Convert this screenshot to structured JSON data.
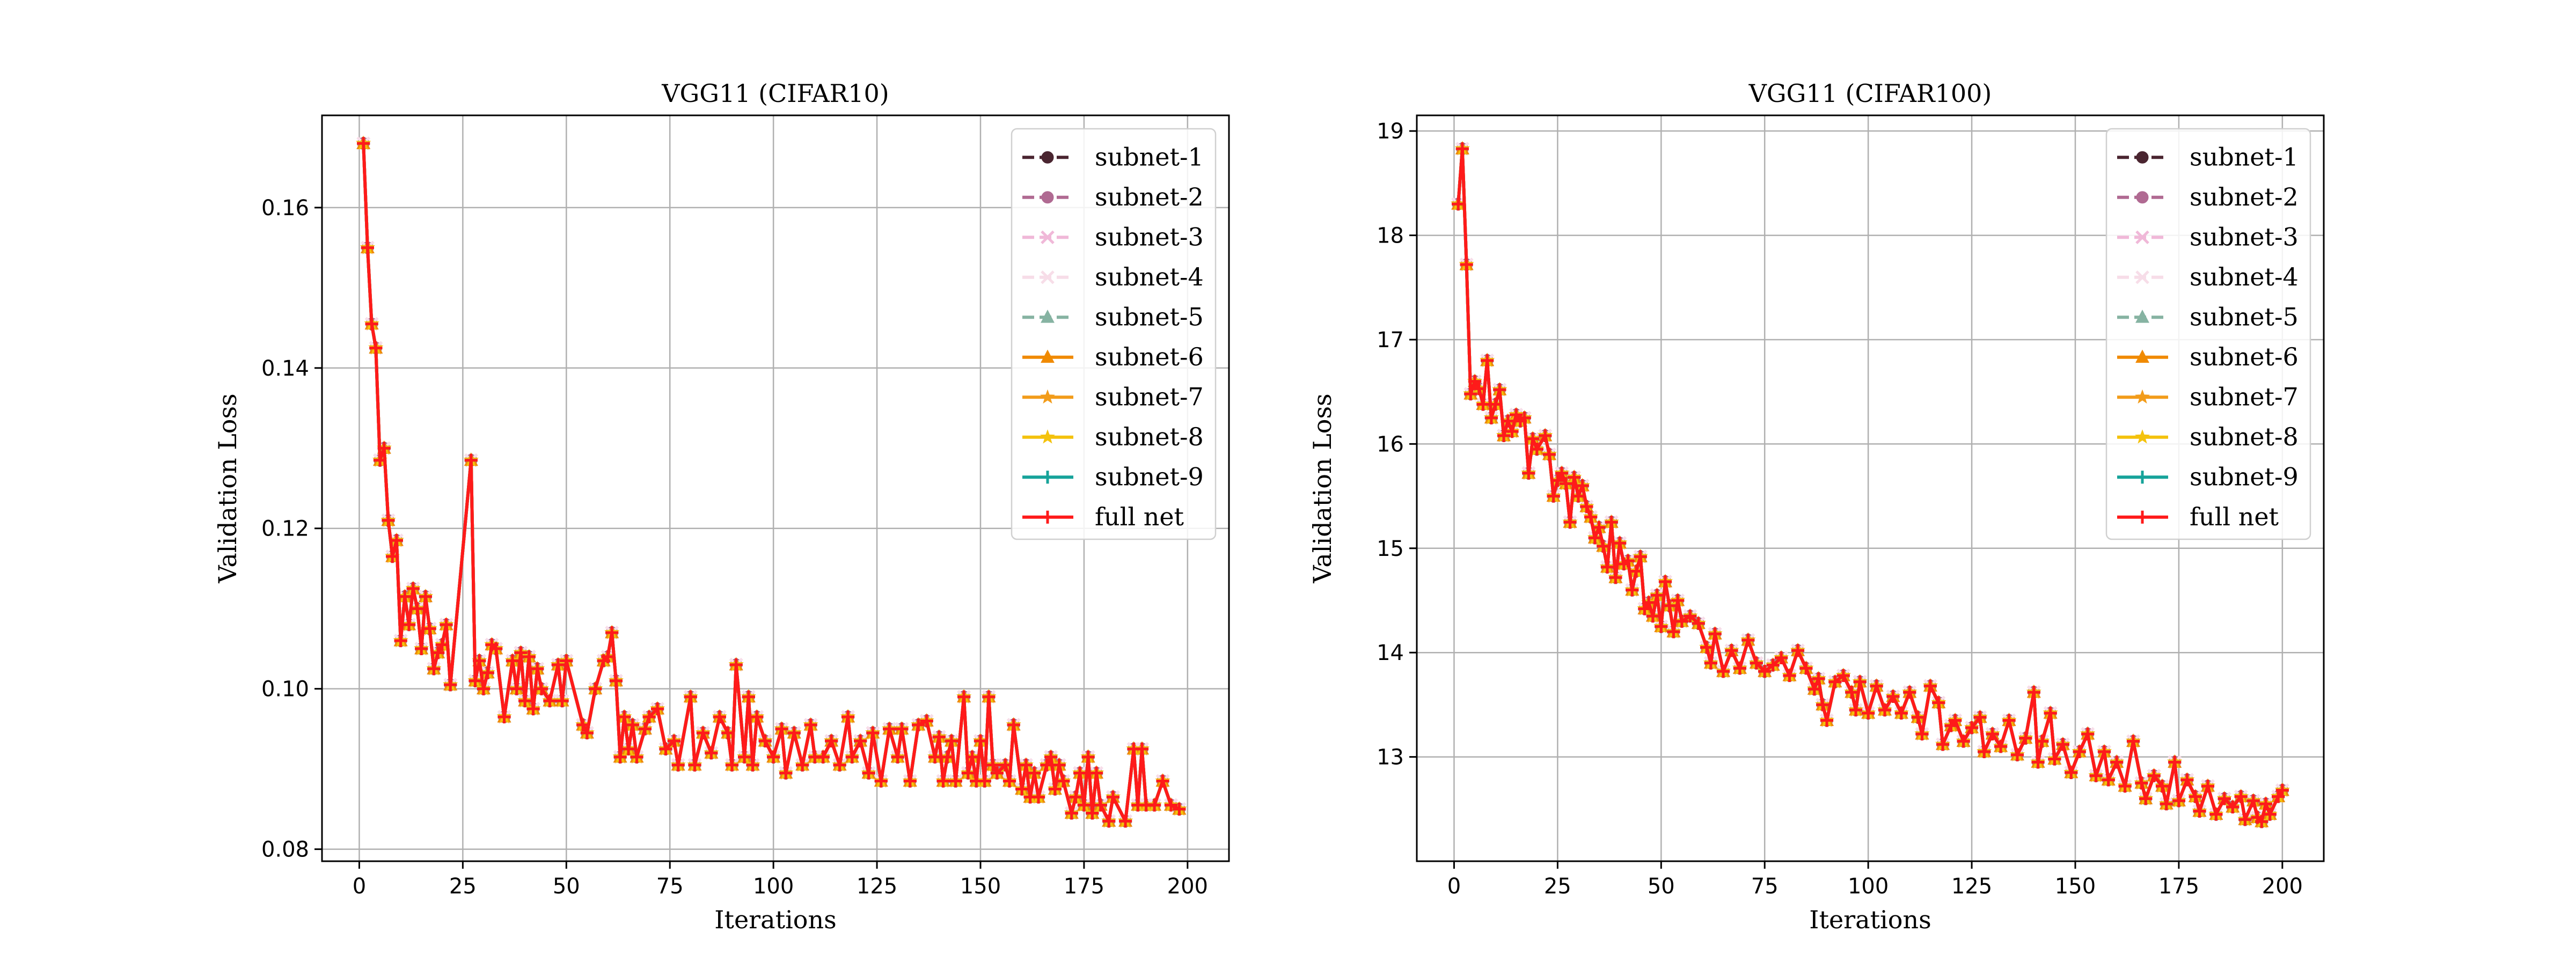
{
  "chart_data": [
    {
      "type": "line",
      "title": "VGG11 (CIFAR10)",
      "xlabel": "Iterations",
      "ylabel": "Validation Loss",
      "xlim": [
        -9,
        210
      ],
      "ylim": [
        0.0785,
        0.1715
      ],
      "xticks": [
        0,
        25,
        50,
        75,
        100,
        125,
        150,
        175,
        200
      ],
      "yticks": [
        0.08,
        0.1,
        0.12,
        0.14,
        0.16
      ],
      "ytick_labels": [
        "0.08",
        "0.10",
        "0.12",
        "0.14",
        "0.16"
      ],
      "grid": true,
      "legend_position": "top-right",
      "series_order_note": "",
      "shared_curve": [
        0.168,
        0.155,
        0.1455,
        0.1425,
        0.1285,
        0.13,
        0.121,
        0.1165,
        0.1185,
        0.106,
        0.1115,
        0.108,
        0.1125,
        0.11,
        0.105,
        0.1115,
        0.1075,
        0.1025,
        0.1045,
        0.1055,
        0.108,
        0.1005,
        0.1285,
        0.101,
        0.1035,
        0.1,
        0.102,
        0.1055,
        0.105,
        0.0965,
        0.1035,
        0.1,
        0.1045,
        0.0985,
        0.104,
        0.0975,
        0.1025,
        0.1,
        0.0985,
        0.103,
        0.0985,
        0.1035,
        0.0955,
        0.0945,
        0.1,
        0.1035,
        0.104,
        0.107,
        0.101,
        0.0915,
        0.0965,
        0.0925,
        0.0955,
        0.0915,
        0.095,
        0.0965,
        0.0975,
        0.0925,
        0.0935,
        0.0905,
        0.099,
        0.0905,
        0.0945,
        0.092,
        0.0965,
        0.0945,
        0.0905,
        0.103,
        0.0915,
        0.099,
        0.0905,
        0.0965,
        0.0935,
        0.0915,
        0.095,
        0.0895,
        0.0945,
        0.0905,
        0.0955,
        0.0915,
        0.0915,
        0.0935,
        0.0905,
        0.0965,
        0.0915,
        0.0935,
        0.0895,
        0.0945,
        0.0885,
        0.095,
        0.0915,
        0.095,
        0.0885,
        0.0955,
        0.096,
        0.0915,
        0.094,
        0.0885,
        0.0915,
        0.0935,
        0.0885,
        0.099,
        0.0895,
        0.0915,
        0.0885,
        0.0935,
        0.0885,
        0.099,
        0.0905,
        0.0895,
        0.0905,
        0.0885,
        0.0955,
        0.0875,
        0.0905,
        0.0865,
        0.0895,
        0.0865,
        0.0905,
        0.0915,
        0.0875,
        0.0905,
        0.0885,
        0.0845,
        0.0865,
        0.0895,
        0.0855,
        0.0915,
        0.0845,
        0.0895,
        0.0855,
        0.0835,
        0.0865,
        0.0835,
        0.0925,
        0.0855,
        0.0925,
        0.0855,
        0.0855,
        0.0885,
        0.0855,
        0.085
      ],
      "shared_x": [
        1,
        2,
        3,
        4,
        5,
        6,
        7,
        8,
        9,
        10,
        11,
        12,
        13,
        14,
        15,
        16,
        17,
        18,
        19,
        20,
        21,
        22,
        27,
        28,
        29,
        30,
        31,
        32,
        33,
        35,
        37,
        38,
        39,
        40,
        41,
        42,
        43,
        44,
        46,
        48,
        49,
        50,
        54,
        55,
        57,
        59,
        60,
        61,
        62,
        63,
        64,
        65,
        66,
        67,
        69,
        70,
        72,
        74,
        76,
        77,
        80,
        81,
        83,
        85,
        87,
        89,
        90,
        91,
        93,
        94,
        95,
        96,
        98,
        100,
        102,
        103,
        105,
        107,
        109,
        110,
        112,
        114,
        116,
        118,
        119,
        121,
        123,
        124,
        126,
        128,
        130,
        131,
        133,
        135,
        137,
        139,
        140,
        141,
        142,
        143,
        144,
        146,
        147,
        148,
        149,
        150,
        151,
        152,
        153,
        154,
        156,
        157,
        158,
        160,
        161,
        162,
        163,
        164,
        166,
        167,
        168,
        169,
        170,
        172,
        173,
        174,
        175,
        176,
        177,
        178,
        179,
        181,
        182,
        185,
        187,
        188,
        189,
        190,
        192,
        194,
        196,
        198
      ],
      "series": [
        {
          "name": "subnet-1",
          "color": "#4a2530",
          "linestyle": "dashed",
          "marker": "circle"
        },
        {
          "name": "subnet-2",
          "color": "#b06a92",
          "linestyle": "dashed",
          "marker": "circle"
        },
        {
          "name": "subnet-3",
          "color": "#f0b8d8",
          "linestyle": "dashed",
          "marker": "x"
        },
        {
          "name": "subnet-4",
          "color": "#f7dde8",
          "linestyle": "dashed",
          "marker": "x"
        },
        {
          "name": "subnet-5",
          "color": "#86b3a2",
          "linestyle": "dashed",
          "marker": "triangle"
        },
        {
          "name": "subnet-6",
          "color": "#f08a00",
          "linestyle": "solid",
          "marker": "triangle"
        },
        {
          "name": "subnet-7",
          "color": "#f29c1a",
          "linestyle": "solid",
          "marker": "star"
        },
        {
          "name": "subnet-8",
          "color": "#f4c20d",
          "linestyle": "solid",
          "marker": "star"
        },
        {
          "name": "subnet-9",
          "color": "#16a39a",
          "linestyle": "solid",
          "marker": "plus"
        },
        {
          "name": "full net",
          "color": "#ff1a1a",
          "linestyle": "solid",
          "marker": "plus"
        }
      ]
    },
    {
      "type": "line",
      "title": "VGG11 (CIFAR100)",
      "xlabel": "Iterations",
      "ylabel": "Validation Loss",
      "xlim": [
        -9,
        210
      ],
      "ylim": [
        12.0,
        19.15
      ],
      "xticks": [
        0,
        25,
        50,
        75,
        100,
        125,
        150,
        175,
        200
      ],
      "yticks": [
        13,
        14,
        15,
        16,
        17,
        18,
        19
      ],
      "ytick_labels": [
        "13",
        "14",
        "15",
        "16",
        "17",
        "18",
        "19"
      ],
      "grid": true,
      "legend_position": "top-right",
      "shared_curve": [
        18.3,
        18.83,
        17.72,
        16.48,
        16.6,
        16.53,
        16.38,
        16.8,
        16.25,
        16.38,
        16.52,
        16.08,
        16.22,
        16.12,
        16.28,
        16.22,
        16.25,
        15.72,
        16.05,
        15.95,
        16.08,
        15.9,
        15.5,
        15.65,
        15.72,
        15.62,
        15.25,
        15.68,
        15.5,
        15.6,
        15.4,
        15.3,
        15.1,
        15.2,
        15.02,
        14.82,
        15.25,
        14.72,
        15.05,
        14.85,
        14.88,
        14.6,
        14.78,
        14.92,
        14.42,
        14.48,
        14.35,
        14.55,
        14.25,
        14.68,
        14.45,
        14.2,
        14.5,
        14.3,
        14.35,
        14.28,
        14.05,
        13.9,
        14.18,
        13.82,
        14.02,
        13.85,
        14.12,
        13.9,
        13.82,
        13.88,
        13.95,
        13.78,
        14.02,
        13.85,
        13.65,
        13.75,
        13.5,
        13.35,
        13.72,
        13.78,
        13.62,
        13.45,
        13.72,
        13.42,
        13.68,
        13.45,
        13.58,
        13.42,
        13.62,
        13.38,
        13.22,
        13.68,
        13.52,
        13.12,
        13.3,
        13.35,
        13.15,
        13.28,
        13.38,
        13.05,
        13.22,
        13.1,
        13.35,
        13.02,
        13.18,
        13.62,
        12.95,
        13.15,
        13.42,
        12.98,
        13.12,
        12.85,
        13.05,
        13.22,
        12.82,
        13.05,
        12.78,
        12.95,
        12.72,
        13.15,
        12.75,
        12.6,
        12.82,
        12.72,
        12.55,
        12.95,
        12.58,
        12.78,
        12.62,
        12.48,
        12.72,
        12.45,
        12.6,
        12.52,
        12.62,
        12.4,
        12.58,
        12.42,
        12.38,
        12.55,
        12.45,
        12.62,
        12.68
      ],
      "shared_x": [
        1,
        2,
        3,
        4,
        5,
        6,
        7,
        8,
        9,
        10,
        11,
        12,
        13,
        14,
        15,
        16,
        17,
        18,
        19,
        20,
        22,
        23,
        24,
        25,
        26,
        27,
        28,
        29,
        30,
        31,
        32,
        33,
        34,
        35,
        36,
        37,
        38,
        39,
        40,
        41,
        42,
        43,
        44,
        45,
        46,
        47,
        48,
        49,
        50,
        51,
        52,
        53,
        54,
        55,
        57,
        59,
        61,
        62,
        63,
        65,
        67,
        69,
        71,
        73,
        75,
        77,
        79,
        81,
        83,
        85,
        87,
        88,
        89,
        90,
        92,
        94,
        96,
        97,
        98,
        100,
        102,
        104,
        106,
        108,
        110,
        112,
        113,
        115,
        117,
        118,
        120,
        121,
        123,
        125,
        127,
        128,
        130,
        132,
        134,
        136,
        138,
        140,
        141,
        142,
        144,
        145,
        147,
        149,
        151,
        153,
        155,
        157,
        158,
        160,
        162,
        164,
        166,
        167,
        169,
        171,
        172,
        174,
        175,
        177,
        179,
        180,
        182,
        184,
        186,
        188,
        190,
        191,
        193,
        194,
        195,
        196,
        197,
        199,
        200
      ],
      "series": [
        {
          "name": "subnet-1",
          "color": "#4a2530",
          "linestyle": "dashed",
          "marker": "circle"
        },
        {
          "name": "subnet-2",
          "color": "#b06a92",
          "linestyle": "dashed",
          "marker": "circle"
        },
        {
          "name": "subnet-3",
          "color": "#f0b8d8",
          "linestyle": "dashed",
          "marker": "x"
        },
        {
          "name": "subnet-4",
          "color": "#f7dde8",
          "linestyle": "dashed",
          "marker": "x"
        },
        {
          "name": "subnet-5",
          "color": "#86b3a2",
          "linestyle": "dashed",
          "marker": "triangle"
        },
        {
          "name": "subnet-6",
          "color": "#f08a00",
          "linestyle": "solid",
          "marker": "triangle"
        },
        {
          "name": "subnet-7",
          "color": "#f29c1a",
          "linestyle": "solid",
          "marker": "star"
        },
        {
          "name": "subnet-8",
          "color": "#f4c20d",
          "linestyle": "solid",
          "marker": "star"
        },
        {
          "name": "subnet-9",
          "color": "#16a39a",
          "linestyle": "solid",
          "marker": "plus"
        },
        {
          "name": "full net",
          "color": "#ff1a1a",
          "linestyle": "solid",
          "marker": "plus"
        }
      ]
    }
  ]
}
